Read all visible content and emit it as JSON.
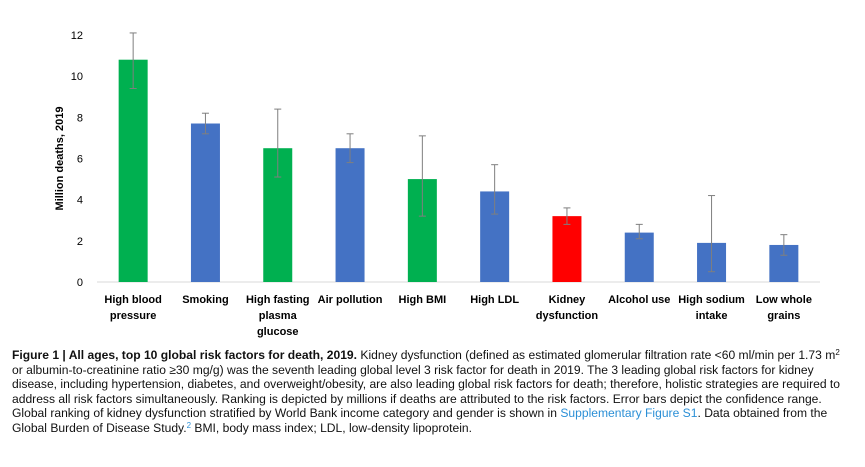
{
  "chart_data": {
    "type": "bar",
    "ylabel": "Million deaths, 2019",
    "ylim": [
      0,
      12
    ],
    "yticks": [
      0,
      2,
      4,
      6,
      8,
      10,
      12
    ],
    "grid": false,
    "categories": [
      [
        "High blood",
        "pressure"
      ],
      [
        "Smoking"
      ],
      [
        "High fasting",
        "plasma",
        "glucose"
      ],
      [
        "Air pollution"
      ],
      [
        "High BMI"
      ],
      [
        "High LDL"
      ],
      [
        "Kidney",
        "dysfunction"
      ],
      [
        "Alcohol use"
      ],
      [
        "High sodium",
        "intake"
      ],
      [
        "Low whole",
        "grains"
      ]
    ],
    "values": [
      10.8,
      7.7,
      6.5,
      6.5,
      5.0,
      4.4,
      3.2,
      2.4,
      1.9,
      1.8
    ],
    "error_low": [
      9.4,
      7.2,
      5.1,
      5.8,
      3.2,
      3.3,
      2.8,
      2.1,
      0.5,
      1.3
    ],
    "error_high": [
      12.1,
      8.2,
      8.4,
      7.2,
      7.1,
      5.7,
      3.6,
      2.8,
      4.2,
      2.3
    ],
    "colors": [
      "#00b050",
      "#4472c4",
      "#00b050",
      "#4472c4",
      "#00b050",
      "#4472c4",
      "#ff0000",
      "#4472c4",
      "#4472c4",
      "#4472c4"
    ]
  },
  "caption": {
    "label": "Figure 1 | All ages, top 10 global risk factors for death, 2019.",
    "text_1": " Kidney dysfunction (defined as estimated glomerular filtration rate <60 ml/min per 1.73 m",
    "sup_1": "2",
    "text_2": " or albumin-to-creatinine ratio ≥30 mg/g) was the seventh leading global level 3 risk factor for death in 2019. The 3 leading global risk factors for kidney disease, including hypertension, diabetes, and overweight/obesity, are also leading global risk factors for death; therefore, holistic strategies are required to address all risk factors simultaneously. Ranking is depicted by millions if deaths are attributed to the risk factors. Error bars depict the confidence range. Global ranking of kidney dysfunction stratified by World Bank income category and gender is shown in ",
    "link": "Supplementary Figure S1",
    "text_3": ". Data obtained from the Global Burden of Disease Study.",
    "sup_2": "2",
    "text_4": " BMI, body mass index; LDL, low-density lipoprotein."
  }
}
